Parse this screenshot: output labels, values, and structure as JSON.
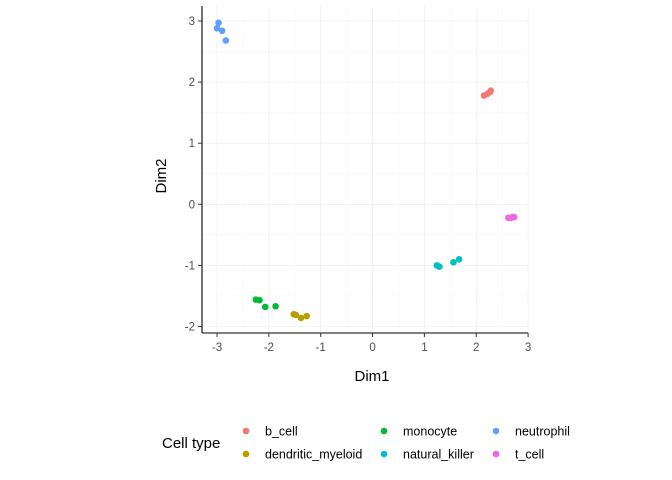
{
  "chart_data": {
    "type": "scatter",
    "title": "",
    "xlabel": "Dim1",
    "ylabel": "Dim2",
    "xlim": [
      -3.15,
      3.0
    ],
    "ylim": [
      -2.12,
      3.12
    ],
    "xticks": [
      -3,
      -2,
      -1,
      0,
      1,
      2,
      3
    ],
    "yticks": [
      -2,
      -1,
      0,
      1,
      2,
      3
    ],
    "grid": true,
    "legend_title": "Cell type",
    "legend_position": "bottom",
    "series": [
      {
        "name": "b_cell",
        "color": "#F8766D",
        "x": [
          2.15,
          2.22,
          2.27,
          2.28
        ],
        "y": [
          1.78,
          1.81,
          1.84,
          1.86
        ]
      },
      {
        "name": "dendritic_myeloid",
        "color": "#B79F00",
        "x": [
          -1.52,
          -1.48,
          -1.38,
          -1.27
        ],
        "y": [
          -1.8,
          -1.81,
          -1.86,
          -1.83
        ]
      },
      {
        "name": "monocyte",
        "color": "#00BA38",
        "x": [
          -2.25,
          -2.18,
          -2.07,
          -1.87
        ],
        "y": [
          -1.56,
          -1.57,
          -1.68,
          -1.67
        ]
      },
      {
        "name": "natural_killer",
        "color": "#00BFC4",
        "x": [
          1.24,
          1.29,
          1.56,
          1.67
        ],
        "y": [
          -1.0,
          -1.02,
          -0.95,
          -0.9
        ]
      },
      {
        "name": "neutrophil",
        "color": "#619CFF",
        "x": [
          -3.0,
          -2.97,
          -2.9,
          -2.83
        ],
        "y": [
          2.88,
          2.97,
          2.84,
          2.68
        ]
      },
      {
        "name": "t_cell",
        "color": "#F564E3",
        "x": [
          2.62,
          2.67,
          2.7,
          2.73
        ],
        "y": [
          -0.22,
          -0.22,
          -0.21,
          -0.21
        ]
      }
    ]
  }
}
